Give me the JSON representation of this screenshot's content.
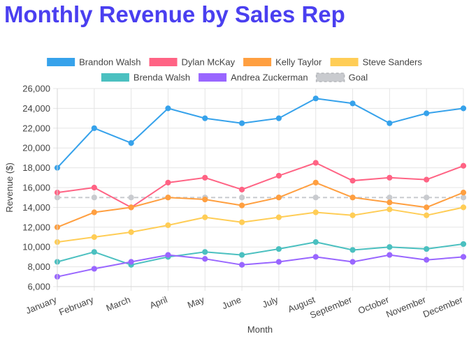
{
  "title": "Monthly Revenue by Sales Rep",
  "chart_data": {
    "type": "line",
    "title": "Monthly Revenue by Sales Rep",
    "xlabel": "Month",
    "ylabel": "Revenue ($)",
    "ylim": [
      6000,
      26000
    ],
    "yticks": [
      6000,
      8000,
      10000,
      12000,
      14000,
      16000,
      18000,
      20000,
      22000,
      24000,
      26000
    ],
    "ytick_labels": [
      "6,000",
      "8,000",
      "10,000",
      "12,000",
      "14,000",
      "16,000",
      "18,000",
      "20,000",
      "22,000",
      "24,000",
      "26,000"
    ],
    "grid": true,
    "legend_position": "top",
    "categories": [
      "January",
      "February",
      "March",
      "April",
      "May",
      "June",
      "July",
      "August",
      "September",
      "October",
      "November",
      "December"
    ],
    "series": [
      {
        "name": "Brandon Walsh",
        "color": "#36a2eb",
        "dashed": false,
        "values": [
          18000,
          22000,
          20500,
          24000,
          23000,
          22500,
          23000,
          25000,
          24500,
          22500,
          23500,
          24000
        ]
      },
      {
        "name": "Dylan McKay",
        "color": "#ff6384",
        "dashed": false,
        "values": [
          15500,
          16000,
          14000,
          16500,
          17000,
          15800,
          17200,
          18500,
          16700,
          17000,
          16800,
          18200
        ]
      },
      {
        "name": "Kelly Taylor",
        "color": "#ff9f40",
        "dashed": false,
        "values": [
          12000,
          13500,
          14000,
          15000,
          14800,
          14200,
          15000,
          16500,
          15000,
          14500,
          14000,
          15500
        ]
      },
      {
        "name": "Steve Sanders",
        "color": "#ffcd56",
        "dashed": false,
        "values": [
          10500,
          11000,
          11500,
          12200,
          13000,
          12500,
          13000,
          13500,
          13200,
          13800,
          13200,
          14000
        ]
      },
      {
        "name": "Brenda Walsh",
        "color": "#4bc0c0",
        "dashed": false,
        "values": [
          8500,
          9500,
          8200,
          9000,
          9500,
          9200,
          9800,
          10500,
          9700,
          10000,
          9800,
          10300
        ]
      },
      {
        "name": "Andrea Zuckerman",
        "color": "#9966ff",
        "dashed": false,
        "values": [
          7000,
          7800,
          8500,
          9200,
          8800,
          8200,
          8500,
          9000,
          8500,
          9200,
          8700,
          9000
        ]
      },
      {
        "name": "Goal",
        "color": "#c9cbcf",
        "dashed": true,
        "values": [
          15000,
          15000,
          15000,
          15000,
          15000,
          15000,
          15000,
          15000,
          15000,
          15000,
          15000,
          15000
        ]
      }
    ]
  }
}
